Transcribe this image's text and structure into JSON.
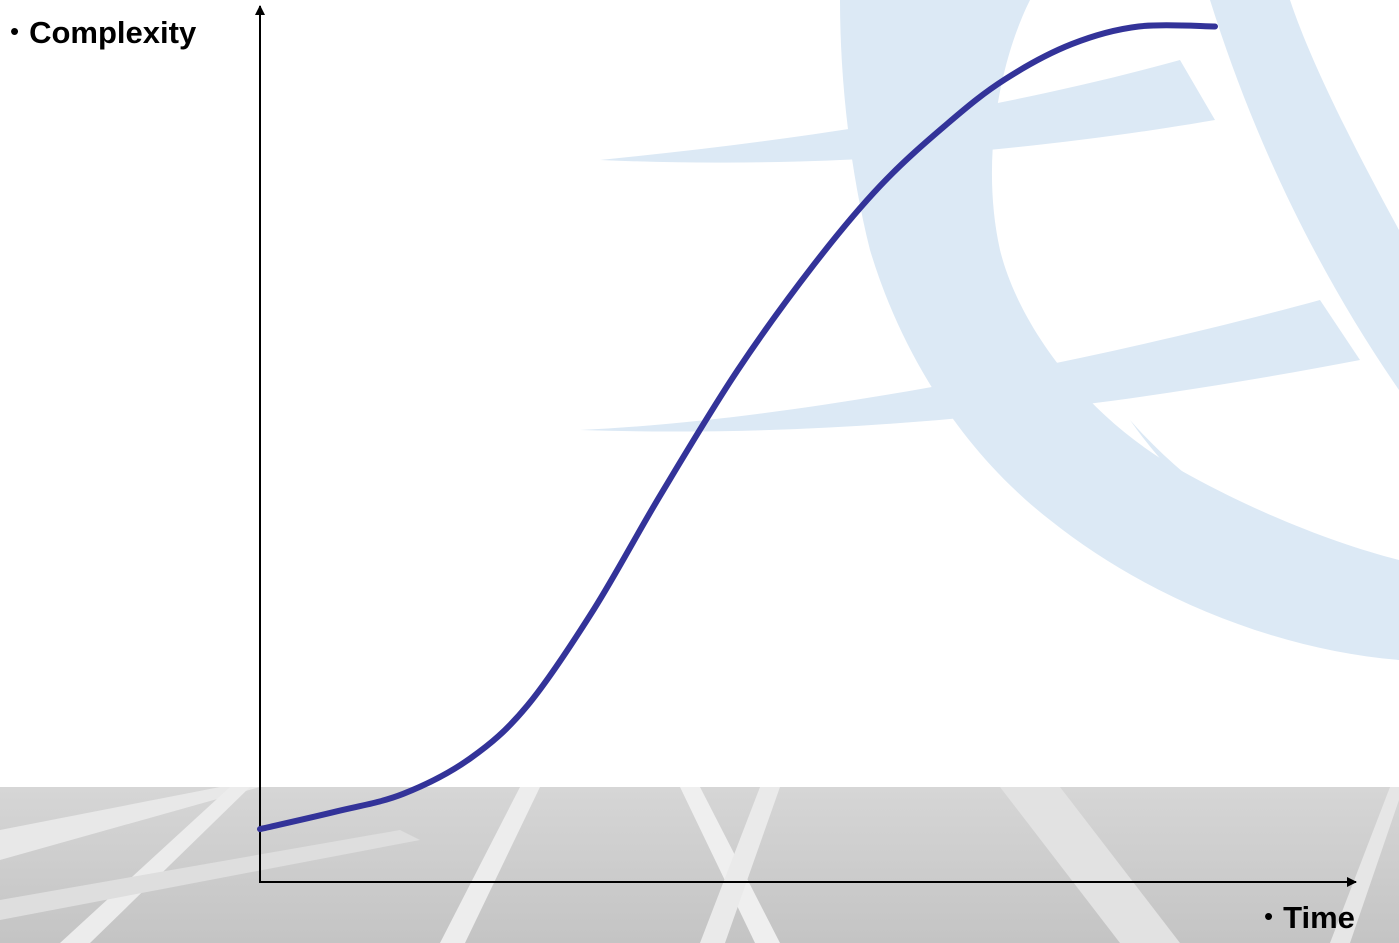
{
  "colors": {
    "curve": "#333399",
    "axis": "#000000",
    "globe_watermark": "#dce9f5",
    "floor_band": "#c8c8c8"
  },
  "axis_labels": {
    "y_bullet": "•",
    "y_text": "Complexity",
    "x_bullet": "•",
    "x_text": "Time"
  },
  "chart_data": {
    "type": "line",
    "xlabel": "Time",
    "ylabel": "Complexity",
    "xlim": [
      0,
      100
    ],
    "ylim": [
      0,
      100
    ],
    "grid": false,
    "legend": "none",
    "series": [
      {
        "x": [
          0,
          8,
          15,
          22,
          28,
          35,
          42,
          50,
          58,
          65,
          72,
          78,
          85,
          92,
          100
        ],
        "values": [
          6,
          8,
          10,
          14,
          20,
          31,
          44,
          58,
          70,
          79,
          86,
          91,
          95,
          97,
          97
        ]
      }
    ]
  }
}
